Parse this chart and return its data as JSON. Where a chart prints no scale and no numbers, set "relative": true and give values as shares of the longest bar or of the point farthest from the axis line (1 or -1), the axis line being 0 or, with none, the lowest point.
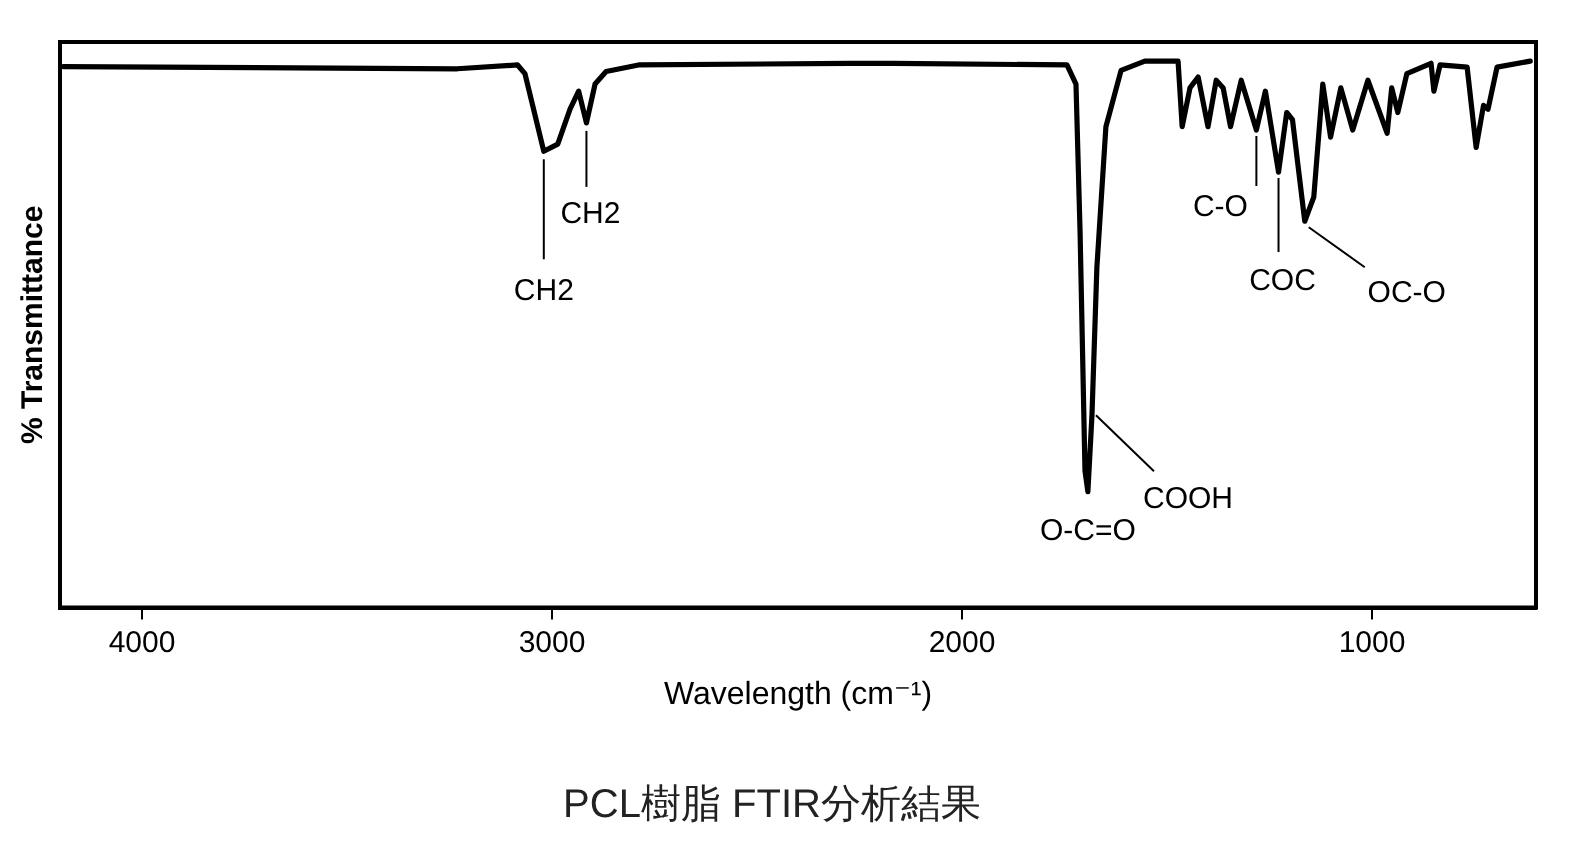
{
  "chart_data": {
    "type": "line",
    "title": "PCL樹脂 FTIR分析結果",
    "xlabel": "Wavelength (cm⁻¹)",
    "ylabel": "% Transmittance",
    "relative": true,
    "color": "#000000",
    "grid": false,
    "legend": false,
    "marker": "none",
    "line_style": "solid",
    "xlim": [
      4200,
      600
    ],
    "xticks": [
      4000,
      3000,
      2000,
      1000
    ],
    "x": [
      4192,
      3231,
      3084,
      3066,
      3020,
      2986,
      2956,
      2935,
      2916,
      2895,
      2868,
      2789,
      2274,
      2168,
      1744,
      1722,
      1712,
      1700,
      1693,
      1683,
      1671,
      1649,
      1612,
      1554,
      1473,
      1463,
      1444,
      1424,
      1400,
      1380,
      1363,
      1345,
      1319,
      1282,
      1260,
      1228,
      1208,
      1194,
      1164,
      1142,
      1120,
      1101,
      1076,
      1047,
      1010,
      963,
      952,
      937,
      915,
      856,
      849,
      834,
      768,
      746,
      728,
      717,
      695,
      614
    ],
    "values": [
      0.99,
      0.986,
      0.993,
      0.977,
      0.835,
      0.848,
      0.912,
      0.945,
      0.887,
      0.958,
      0.981,
      0.993,
      0.996,
      0.996,
      0.993,
      0.958,
      0.687,
      0.25,
      0.212,
      0.352,
      0.623,
      0.88,
      0.983,
      1,
      1,
      0.88,
      0.951,
      0.971,
      0.88,
      0.965,
      0.951,
      0.88,
      0.965,
      0.874,
      0.945,
      0.797,
      0.906,
      0.893,
      0.707,
      0.751,
      0.958,
      0.861,
      0.951,
      0.874,
      0.965,
      0.868,
      0.951,
      0.906,
      0.977,
      0.996,
      0.945,
      0.993,
      0.989,
      0.842,
      0.919,
      0.912,
      0.989,
      1
    ],
    "annotations": [
      {
        "text": "CH2",
        "x": 3020,
        "y": 0.835
      },
      {
        "text": "CH2",
        "x": 2916,
        "y": 0.887
      },
      {
        "text": "O-C=O",
        "x": 1693,
        "y": 0.212
      },
      {
        "text": "COOH",
        "x": 1683,
        "y": 0.352
      },
      {
        "text": "C-O",
        "x": 1282,
        "y": 0.874
      },
      {
        "text": "COC",
        "x": 1228,
        "y": 0.797
      },
      {
        "text": "OC-O",
        "x": 1164,
        "y": 0.707
      }
    ]
  }
}
